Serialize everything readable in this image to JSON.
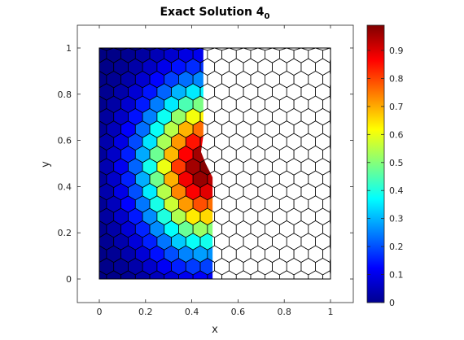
{
  "chart_data": {
    "type": "heatmap",
    "title": "Exact Solution 4",
    "title_subscript": "0",
    "xlabel": "x",
    "ylabel": "y",
    "xlim": [
      -0.1,
      1.1
    ],
    "ylim": [
      -0.1,
      1.1
    ],
    "xticks": [
      "0",
      "0.2",
      "0.4",
      "0.6",
      "0.8",
      "1"
    ],
    "yticks": [
      "0",
      "0.2",
      "0.4",
      "0.6",
      "0.8",
      "1"
    ],
    "colorbar": {
      "colormap": "jet",
      "range": [
        0,
        0.99
      ],
      "ticks": [
        "0",
        "0.1",
        "0.2",
        "0.3",
        "0.4",
        "0.5",
        "0.6",
        "0.7",
        "0.8",
        "0.9"
      ]
    },
    "mesh": "hexagonal polygonal mesh on unit square",
    "solution": {
      "peak_value": 0.99,
      "peak_location": [
        0.45,
        0.48
      ],
      "colored_region": "left part of domain, boundary from x=0.45 at y=1 to x=0.49 at y=0"
    },
    "colors": {
      "mesh_edge": "#000000",
      "axis": "#262626"
    }
  }
}
